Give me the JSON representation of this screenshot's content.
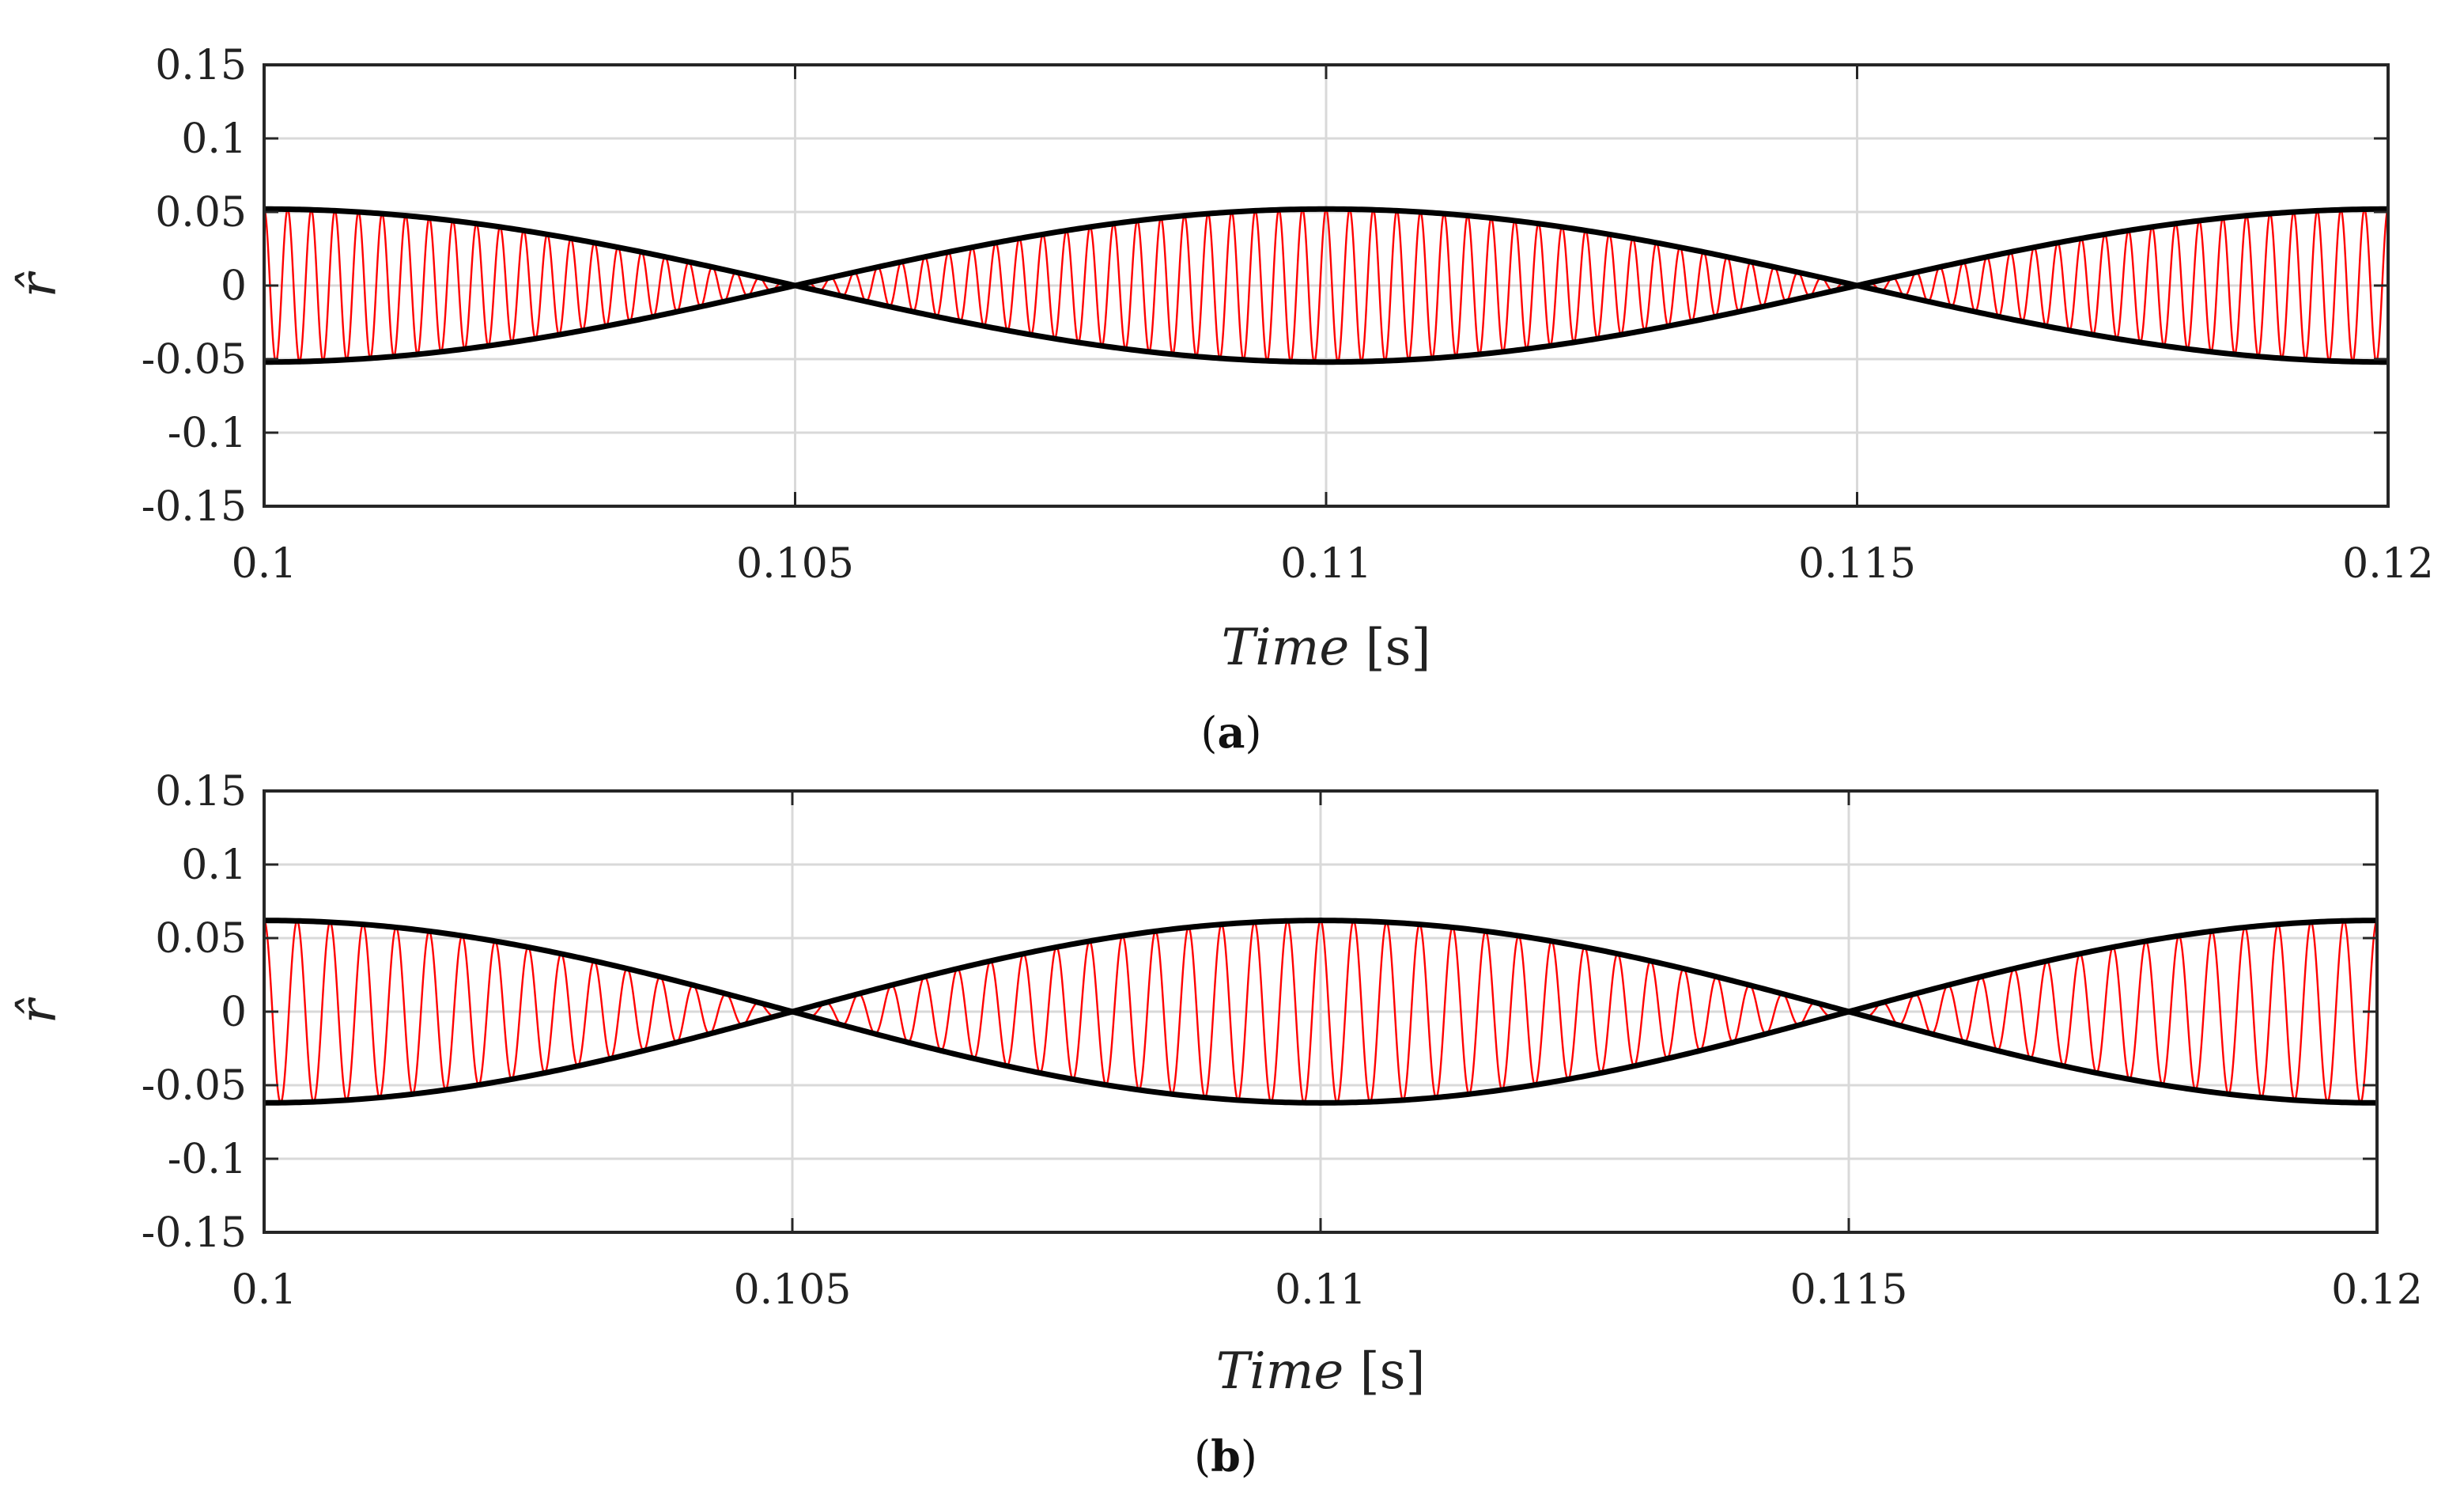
{
  "chart_data": [
    {
      "type": "line",
      "panel_label": "a",
      "xlabel": "Time",
      "xunit": "[s]",
      "ylabel": "r̂",
      "xlim": [
        0.1,
        0.12
      ],
      "ylim": [
        -0.15,
        0.15
      ],
      "grid": true,
      "x_ticks": [
        "0.1",
        "0.105",
        "0.11",
        "0.115",
        "0.12"
      ],
      "y_ticks": [
        "0.15",
        "0.1",
        "0.05",
        "0",
        "-0.05",
        "-0.1",
        "-0.15"
      ],
      "series": [
        {
          "name": "signal",
          "color": "#ff0000",
          "amplitude": 0.052,
          "envelope_period_s": 0.01,
          "carrier_cycles": 90
        },
        {
          "name": "upper envelope",
          "color": "#000000",
          "peak": 0.052,
          "period_s": 0.01
        },
        {
          "name": "lower envelope",
          "color": "#000000",
          "peak": -0.052,
          "period_s": 0.01
        }
      ]
    },
    {
      "type": "line",
      "panel_label": "b",
      "xlabel": "Time",
      "xunit": "[s]",
      "ylabel": "r̂",
      "xlim": [
        0.1,
        0.12
      ],
      "ylim": [
        -0.15,
        0.15
      ],
      "grid": true,
      "x_ticks": [
        "0.1",
        "0.105",
        "0.11",
        "0.115",
        "0.12"
      ],
      "y_ticks": [
        "0.15",
        "0.1",
        "0.05",
        "0",
        "-0.05",
        "-0.1",
        "-0.15"
      ],
      "series": [
        {
          "name": "signal",
          "color": "#ff0000",
          "amplitude": 0.062,
          "envelope_period_s": 0.01,
          "carrier_cycles": 64
        },
        {
          "name": "upper envelope",
          "color": "#000000",
          "peak": 0.062,
          "period_s": 0.01
        },
        {
          "name": "lower envelope",
          "color": "#000000",
          "peak": -0.062,
          "period_s": 0.01
        }
      ]
    }
  ]
}
